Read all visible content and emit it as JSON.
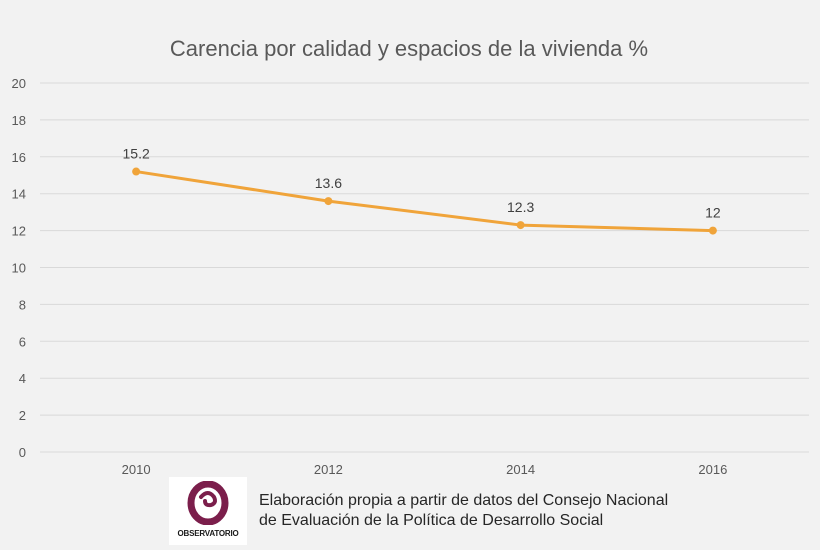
{
  "chart_data": {
    "type": "line",
    "title": "Carencia por calidad y espacios de la vivienda %",
    "xlabel": "",
    "ylabel": "",
    "categories": [
      "2010",
      "2012",
      "2014",
      "2016"
    ],
    "series": [
      {
        "values": [
          15.2,
          13.6,
          12.3,
          12
        ],
        "data_labels": [
          "15.2",
          "13.6",
          "12.3",
          "12"
        ]
      }
    ],
    "ylim": [
      0,
      20
    ],
    "yticks": [
      "0",
      "2",
      "4",
      "6",
      "8",
      "10",
      "12",
      "14",
      "16",
      "18",
      "20"
    ],
    "grid": true,
    "legend": "none",
    "line_color": "#f0a43a",
    "grid_color": "#d9d9d9"
  },
  "footer": {
    "logo_text": "OBSERVATORIO",
    "logo_color": "#7b1e4b",
    "source_line1": "Elaboración propia a partir de datos del Consejo Nacional",
    "source_line2": "de Evaluación de la Política de Desarrollo Social"
  }
}
